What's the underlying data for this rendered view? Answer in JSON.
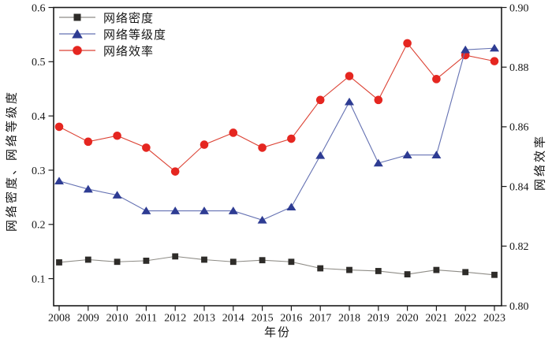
{
  "chart_data": {
    "type": "line",
    "title": "",
    "legend_position": "top-left",
    "grid": false,
    "background_color": "#ffffff",
    "frame_color": "#1a1a1a",
    "x_axis": {
      "label": "年份",
      "categories": [
        "2008",
        "2009",
        "2010",
        "2011",
        "2012",
        "2013",
        "2014",
        "2015",
        "2016",
        "2017",
        "2018",
        "2019",
        "2020",
        "2021",
        "2022",
        "2023"
      ]
    },
    "left_axis": {
      "label": "网络密度、网络等级度",
      "min": 0.05,
      "max": 0.6,
      "tick_labels": [
        "0.1",
        "0.2",
        "0.3",
        "0.4",
        "0.5",
        "0.6"
      ]
    },
    "right_axis": {
      "label": "网络效率",
      "min": 0.8,
      "max": 0.9,
      "tick_labels": [
        "0.80",
        "0.82",
        "0.84",
        "0.86",
        "0.88",
        "0.90"
      ]
    },
    "series": [
      {
        "name": "网络密度",
        "axis": "left",
        "marker": "square",
        "marker_color": "#2e2c29",
        "line_color": "#8e8c86",
        "values": [
          0.13,
          0.135,
          0.131,
          0.133,
          0.141,
          0.135,
          0.131,
          0.134,
          0.131,
          0.119,
          0.116,
          0.114,
          0.108,
          0.116,
          0.112,
          0.107
        ]
      },
      {
        "name": "网络等级度",
        "axis": "left",
        "marker": "triangle",
        "marker_color": "#2e3c93",
        "line_color": "#6471b2",
        "values": [
          0.28,
          0.265,
          0.254,
          0.225,
          0.225,
          0.225,
          0.225,
          0.208,
          0.232,
          0.327,
          0.426,
          0.313,
          0.328,
          0.328,
          0.522,
          0.525
        ]
      },
      {
        "name": "网络效率",
        "axis": "right",
        "marker": "circle",
        "marker_color": "#e52620",
        "line_color": "#dc4234",
        "values": [
          0.86,
          0.855,
          0.857,
          0.853,
          0.845,
          0.854,
          0.858,
          0.853,
          0.856,
          0.869,
          0.877,
          0.869,
          0.888,
          0.876,
          0.884,
          0.882
        ]
      }
    ]
  }
}
